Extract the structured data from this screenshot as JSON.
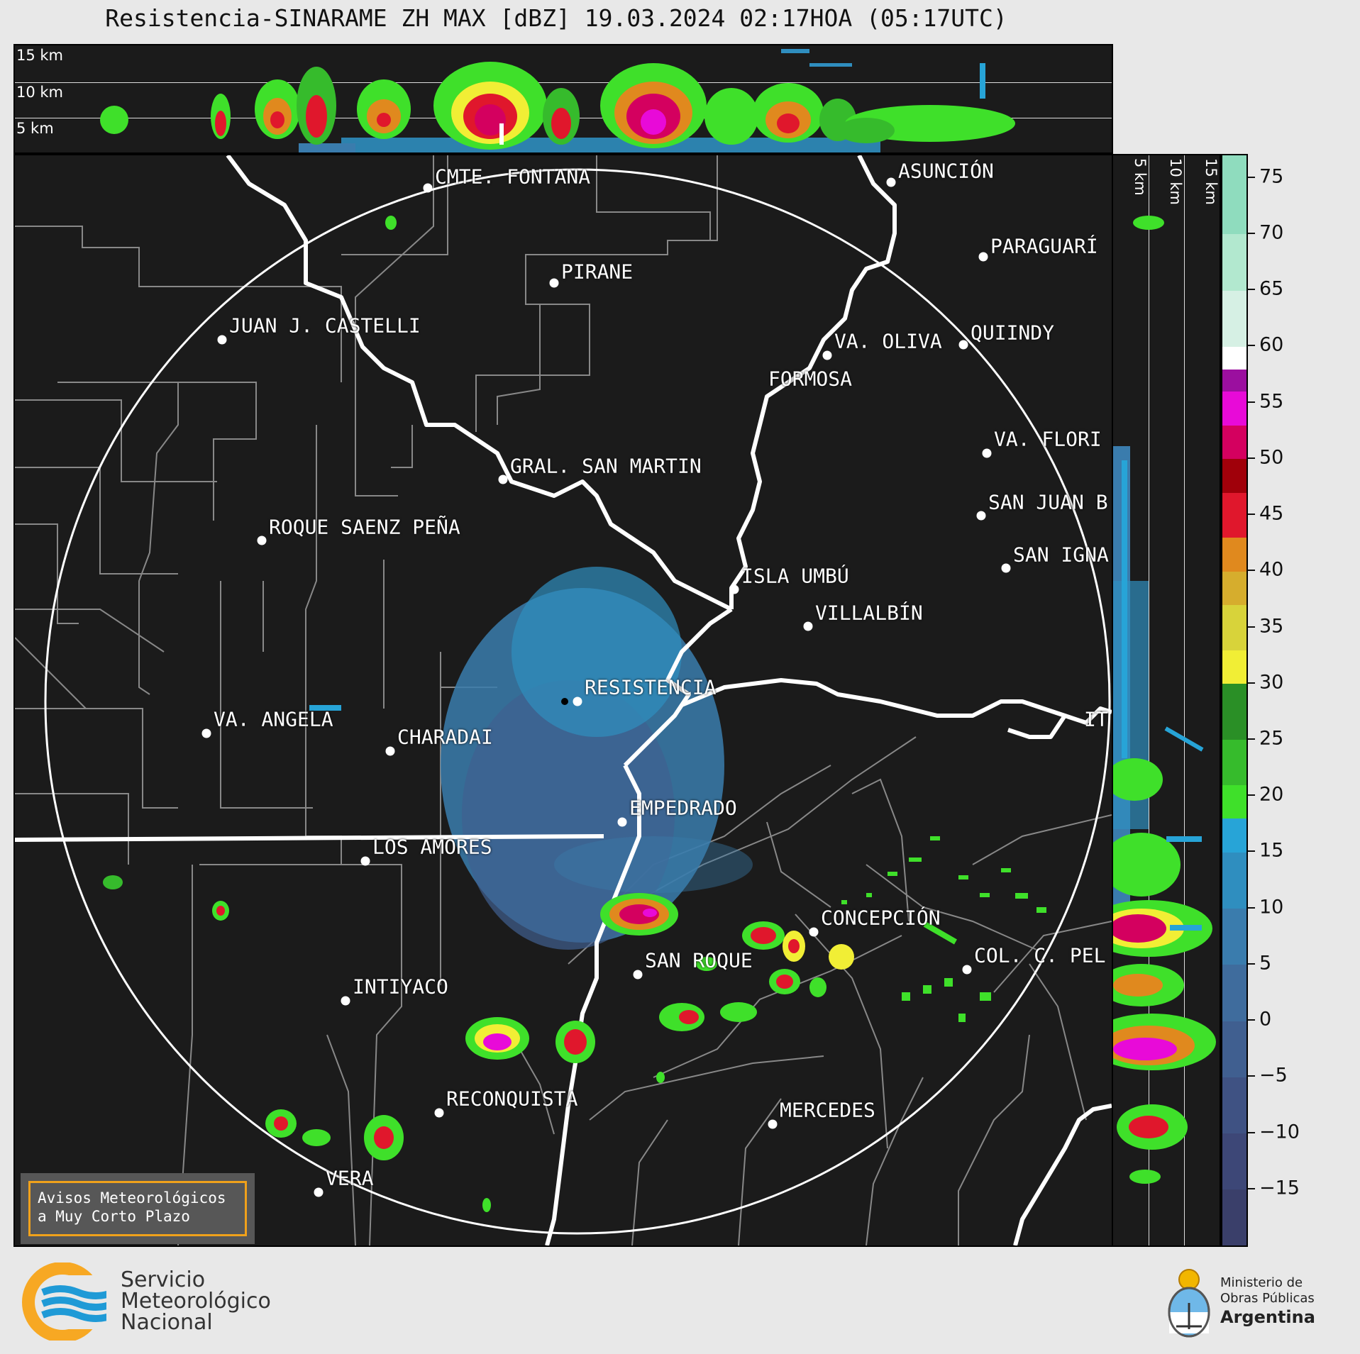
{
  "title": "Resistencia-SINARAME ZH MAX [dBZ] 19.03.2024 02:17HOA (05:17UTC)",
  "top_section": {
    "height_labels": [
      "15 km",
      "10 km",
      "5 km"
    ]
  },
  "right_section": {
    "height_labels": [
      "5 km",
      "10 km",
      "15 km"
    ]
  },
  "colorbar": {
    "unit": "dBZ",
    "min": -20,
    "max": 77,
    "tick_labels": [
      "75",
      "70",
      "65",
      "60",
      "55",
      "50",
      "45",
      "40",
      "35",
      "30",
      "25",
      "20",
      "15",
      "10",
      "5",
      "0",
      "−5",
      "−10",
      "−15"
    ],
    "tick_values": [
      75,
      70,
      65,
      60,
      55,
      50,
      45,
      40,
      35,
      30,
      25,
      20,
      15,
      10,
      5,
      0,
      -5,
      -10,
      -15
    ],
    "bands": [
      {
        "from": -20,
        "to": -15,
        "color": "#3a3f6a"
      },
      {
        "from": -15,
        "to": -10,
        "color": "#3d4777"
      },
      {
        "from": -10,
        "to": -5,
        "color": "#3f5283"
      },
      {
        "from": -5,
        "to": 0,
        "color": "#405f90"
      },
      {
        "from": 0,
        "to": 5,
        "color": "#3f6c9d"
      },
      {
        "from": 5,
        "to": 10,
        "color": "#3a7cad"
      },
      {
        "from": 10,
        "to": 15,
        "color": "#2f8ebf"
      },
      {
        "from": 15,
        "to": 18,
        "color": "#27a4d7"
      },
      {
        "from": 18,
        "to": 21,
        "color": "#3fe02a"
      },
      {
        "from": 21,
        "to": 25,
        "color": "#36bb2c"
      },
      {
        "from": 25,
        "to": 30,
        "color": "#2a8f26"
      },
      {
        "from": 30,
        "to": 33,
        "color": "#f1ee35"
      },
      {
        "from": 33,
        "to": 37,
        "color": "#d8d33a"
      },
      {
        "from": 37,
        "to": 40,
        "color": "#d6ad2d"
      },
      {
        "from": 40,
        "to": 43,
        "color": "#e0891e"
      },
      {
        "from": 43,
        "to": 47,
        "color": "#e0172c"
      },
      {
        "from": 47,
        "to": 50,
        "color": "#a0000a"
      },
      {
        "from": 50,
        "to": 53,
        "color": "#d4005f"
      },
      {
        "from": 53,
        "to": 56,
        "color": "#e80ad8"
      },
      {
        "from": 56,
        "to": 58,
        "color": "#9b0f9f"
      },
      {
        "from": 58,
        "to": 60,
        "color": "#ffffff"
      },
      {
        "from": 60,
        "to": 65,
        "color": "#d6f0e4"
      },
      {
        "from": 65,
        "to": 70,
        "color": "#b2e8cf"
      },
      {
        "from": 70,
        "to": 77,
        "color": "#8fdcbe"
      }
    ]
  },
  "cities": [
    "CMTE. FONTANA",
    "ASUNCIÓN",
    "PARAGUARÍ",
    "PIRANE",
    "JUAN J. CASTELLI",
    "VA. OLIVA",
    "QUIINDY",
    "FORMOSA",
    "VA. FLORI",
    "GRAL. SAN MARTIN",
    "SAN JUAN B",
    "ROQUE SAENZ PEÑA",
    "SAN IGNA",
    "ISLA UMBÚ",
    "VILLALBÍN",
    "RESISTENCIA",
    "VA. ANGELA",
    "CHARADAI",
    "IT",
    "EMPEDRADO",
    "LOS AMORES",
    "CONCEPCIÓN",
    "SAN ROQUE",
    "COL. C. PEL",
    "INTIYACO",
    "RECONQUISTA",
    "MERCEDES",
    "VERA"
  ],
  "avisos": {
    "line1": "Avisos Meteorológicos",
    "line2": "a Muy Corto Plazo"
  },
  "smn": {
    "line1": "Servicio",
    "line2": "Meteorológico",
    "line3": "Nacional",
    "colors": {
      "orange": "#f7a823",
      "blue": "#1f9ad6"
    }
  },
  "ministerio": {
    "line1": "Ministerio de",
    "line2": "Obras Públicas",
    "line3": "Argentina"
  }
}
